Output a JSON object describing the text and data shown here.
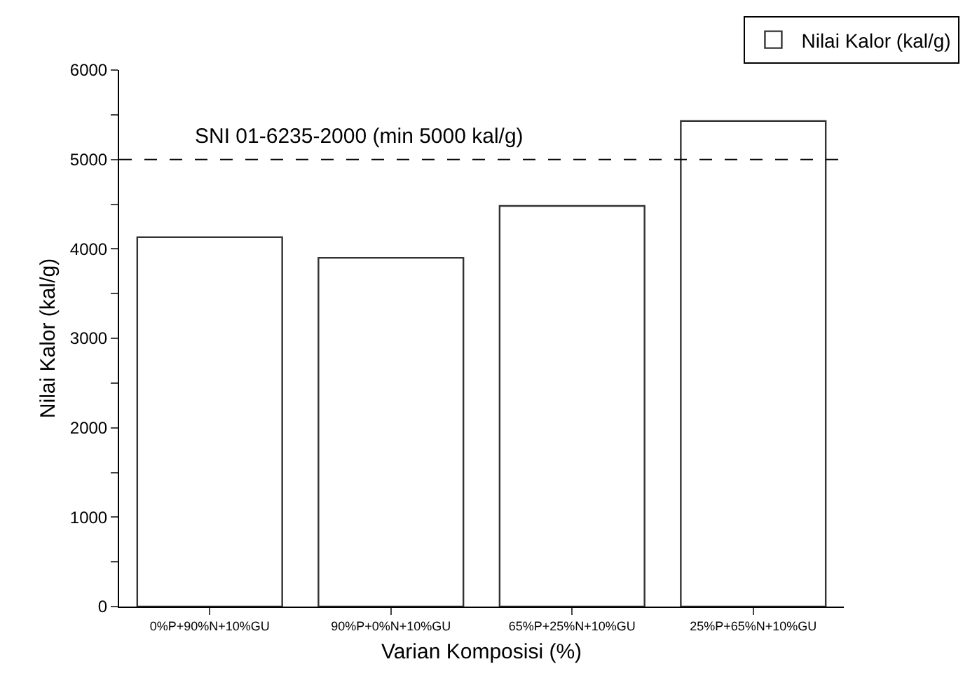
{
  "chart_data": {
    "type": "bar",
    "xlabel": "Varian Komposisi (%)",
    "ylabel": "Nilai Kalor (kal/g)",
    "categories": [
      "0%P+90%N+10%GU",
      "90%P+0%N+10%GU",
      "65%P+25%N+10%GU",
      "25%P+65%N+10%GU"
    ],
    "series": [
      {
        "name": "Nilai Kalor (kal/g)",
        "color": "#333333",
        "values": [
          4130,
          3900,
          4480,
          5430
        ]
      }
    ],
    "ylim": [
      0,
      6000
    ],
    "yticks": [
      0,
      {
        "value": 500,
        "label": null
      },
      1000,
      {
        "value": 1500,
        "label": null
      },
      2000,
      {
        "value": 2500,
        "label": null
      },
      3000,
      {
        "value": 3500,
        "label": null
      },
      4000,
      {
        "value": 4500,
        "label": null
      },
      5000,
      {
        "value": 5500,
        "label": null
      },
      6000
    ],
    "ref_lines": [
      {
        "axis": "y",
        "value": 5000,
        "label": "SNI 01-6235-2000 (min 5000 kal/g)",
        "color": "#000000",
        "line_style": "dashed"
      }
    ],
    "legend": "top right"
  }
}
